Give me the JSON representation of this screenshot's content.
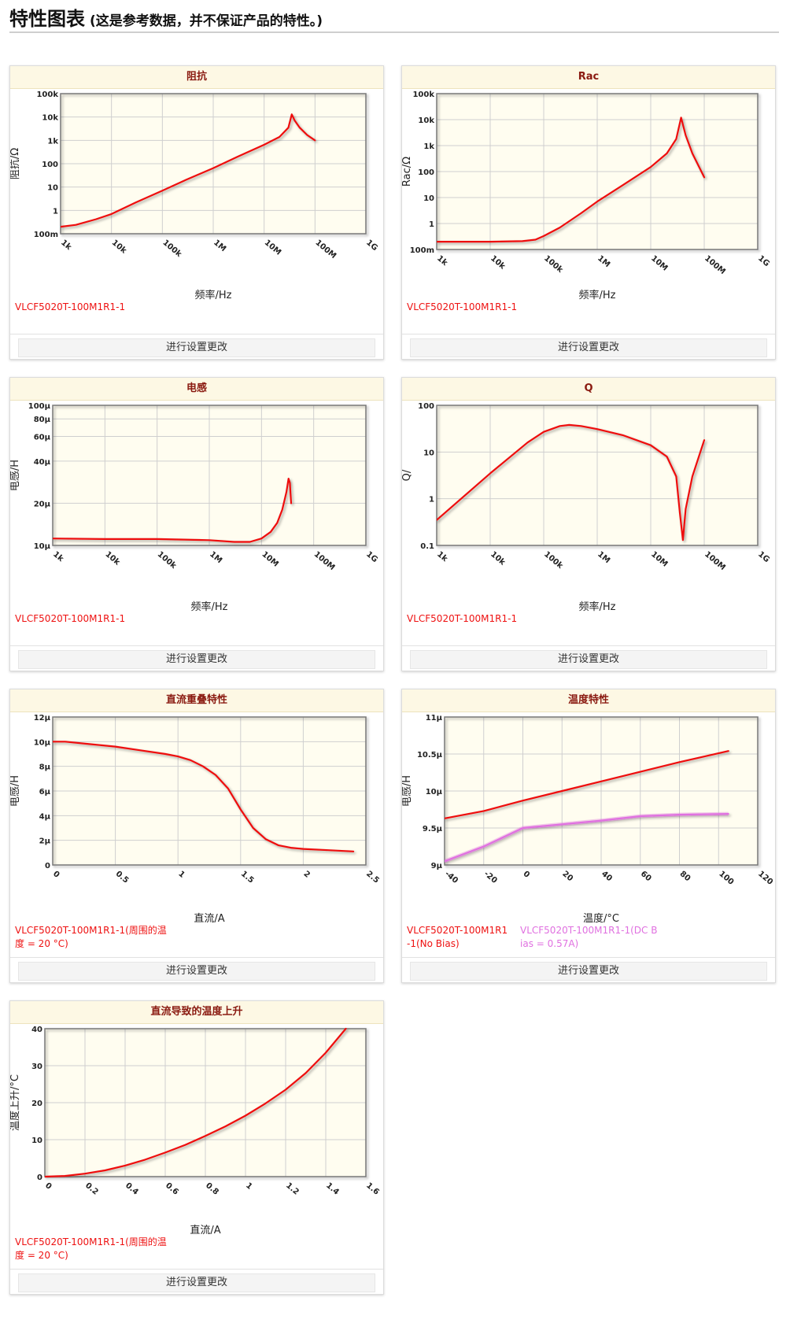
{
  "page": {
    "title": "特性图表",
    "subtitle": "(这是参考数据，并不保证产品的特性。)"
  },
  "button_label": "进行设置更改",
  "charts": [
    {
      "id": "impedance",
      "title": "阻抗",
      "xlabel": "频率/Hz",
      "ylabel": "阻抗/Ω",
      "x_scale": "log",
      "y_scale": "log",
      "xlim": [
        1000,
        1000000000
      ],
      "ylim": [
        0.1,
        100000
      ],
      "x_ticks": [
        1000,
        10000,
        100000,
        1000000,
        10000000,
        100000000,
        1000000000
      ],
      "x_tick_labels": [
        "1k",
        "10k",
        "100k",
        "1M",
        "10M",
        "100M",
        "1G"
      ],
      "y_ticks": [
        0.1,
        1,
        10,
        100,
        1000,
        10000,
        100000
      ],
      "y_tick_labels": [
        "100m",
        "1",
        "10",
        "100",
        "1k",
        "10k",
        "100k"
      ],
      "grid": true,
      "series": [
        {
          "legend": "VLCF5020T-100M1R1-1",
          "color": "#ee1111",
          "glow": false,
          "x": [
            1000,
            2000,
            5000,
            10000,
            30000,
            100000,
            300000,
            1000000,
            3000000,
            10000000,
            20000000,
            30000000,
            35000000,
            40000000,
            50000000,
            70000000,
            100000000
          ],
          "y": [
            0.2,
            0.24,
            0.42,
            0.7,
            2.2,
            7,
            21,
            65,
            200,
            650,
            1400,
            3500,
            13000,
            7000,
            3500,
            1700,
            1000
          ]
        }
      ]
    },
    {
      "id": "rac",
      "title": "Rac",
      "xlabel": "频率/Hz",
      "ylabel": "Rac/Ω",
      "x_scale": "log",
      "y_scale": "log",
      "xlim": [
        1000,
        1000000000
      ],
      "ylim": [
        0.1,
        100000
      ],
      "x_ticks": [
        1000,
        10000,
        100000,
        1000000,
        10000000,
        100000000,
        1000000000
      ],
      "x_tick_labels": [
        "1k",
        "10k",
        "100k",
        "1M",
        "10M",
        "100M",
        "1G"
      ],
      "y_ticks": [
        0.1,
        1,
        10,
        100,
        1000,
        10000,
        100000
      ],
      "y_tick_labels": [
        "100m",
        "1",
        "10",
        "100",
        "1k",
        "10k",
        "100k"
      ],
      "grid": true,
      "series": [
        {
          "legend": "VLCF5020T-100M1R1-1",
          "color": "#ee1111",
          "glow": false,
          "x": [
            1000,
            10000,
            40000,
            70000,
            100000,
            200000,
            500000,
            1000000,
            3000000,
            10000000,
            20000000,
            30000000,
            37000000,
            45000000,
            60000000,
            100000000
          ],
          "y": [
            0.2,
            0.2,
            0.21,
            0.24,
            0.33,
            0.7,
            2.5,
            7,
            30,
            150,
            500,
            1800,
            12000,
            2500,
            500,
            60
          ]
        }
      ]
    },
    {
      "id": "inductance",
      "title": "电感",
      "xlabel": "频率/Hz",
      "ylabel": "电感/H",
      "x_scale": "log",
      "y_scale": "log",
      "xlim": [
        1000,
        1000000000
      ],
      "ylim": [
        1e-05,
        0.0001
      ],
      "x_ticks": [
        1000,
        10000,
        100000,
        1000000,
        10000000,
        100000000,
        1000000000
      ],
      "x_tick_labels": [
        "1k",
        "10k",
        "100k",
        "1M",
        "10M",
        "100M",
        "1G"
      ],
      "y_ticks": [
        1e-05,
        2e-05,
        4e-05,
        6e-05,
        8e-05,
        0.0001
      ],
      "y_tick_labels": [
        "10μ",
        "20μ",
        "40μ",
        "60μ",
        "80μ",
        "100μ"
      ],
      "grid": true,
      "series": [
        {
          "legend": "VLCF5020T-100M1R1-1",
          "color": "#ee1111",
          "glow": false,
          "x": [
            1000,
            10000,
            100000,
            1000000,
            3000000,
            6000000,
            10000000,
            15000000,
            20000000,
            25000000,
            30000000,
            33000000,
            35000000,
            37000000
          ],
          "y": [
            1.12e-05,
            1.11e-05,
            1.11e-05,
            1.09e-05,
            1.06e-05,
            1.06e-05,
            1.12e-05,
            1.25e-05,
            1.45e-05,
            1.8e-05,
            2.4e-05,
            3e-05,
            2.8e-05,
            2e-05
          ]
        }
      ]
    },
    {
      "id": "q",
      "title": "Q",
      "xlabel": "频率/Hz",
      "ylabel": "Q/",
      "x_scale": "log",
      "y_scale": "log",
      "xlim": [
        1000,
        1000000000
      ],
      "ylim": [
        0.1,
        100
      ],
      "x_ticks": [
        1000,
        10000,
        100000,
        1000000,
        10000000,
        100000000,
        1000000000
      ],
      "x_tick_labels": [
        "1k",
        "10k",
        "100k",
        "1M",
        "10M",
        "100M",
        "1G"
      ],
      "y_ticks": [
        0.1,
        1,
        10,
        100
      ],
      "y_tick_labels": [
        "0.1",
        "1",
        "10",
        "100"
      ],
      "grid": true,
      "series": [
        {
          "legend": "VLCF5020T-100M1R1-1",
          "color": "#ee1111",
          "glow": false,
          "x": [
            1000,
            10000,
            50000,
            100000,
            200000,
            300000,
            500000,
            1000000,
            3000000,
            10000000,
            20000000,
            30000000,
            35000000,
            40000000,
            45000000,
            60000000,
            100000000
          ],
          "y": [
            0.35,
            3.5,
            16,
            27,
            36,
            38,
            36,
            31,
            23,
            14,
            8,
            3,
            0.5,
            0.13,
            0.6,
            3,
            18
          ]
        }
      ]
    },
    {
      "id": "dc-superposition",
      "title": "直流重叠特性",
      "xlabel": "直流/A",
      "ylabel": "电感/H",
      "x_scale": "linear",
      "y_scale": "linear",
      "xlim": [
        0,
        2.5
      ],
      "ylim": [
        0,
        1.2e-05
      ],
      "x_ticks": [
        0,
        0.5,
        1,
        1.5,
        2,
        2.5
      ],
      "x_tick_labels": [
        "0",
        "0.5",
        "1",
        "1.5",
        "2",
        "2.5"
      ],
      "y_ticks": [
        0,
        2e-06,
        4e-06,
        6e-06,
        8e-06,
        1e-05,
        1.2e-05
      ],
      "y_tick_labels": [
        "0",
        "2μ",
        "4μ",
        "6μ",
        "8μ",
        "10μ",
        "12μ"
      ],
      "grid": true,
      "series": [
        {
          "legend": "VLCF5020T-100M1R1-1(周围的温度 = 20 °C)",
          "color": "#ee1111",
          "glow": false,
          "x": [
            0,
            0.1,
            0.3,
            0.5,
            0.7,
            0.9,
            1.0,
            1.1,
            1.2,
            1.3,
            1.4,
            1.5,
            1.6,
            1.7,
            1.8,
            1.9,
            2.0,
            2.2,
            2.4
          ],
          "y": [
            1e-05,
            1e-05,
            9.8e-06,
            9.6e-06,
            9.3e-06,
            9e-06,
            8.8e-06,
            8.5e-06,
            8e-06,
            7.3e-06,
            6.2e-06,
            4.5e-06,
            3e-06,
            2.1e-06,
            1.6e-06,
            1.4e-06,
            1.3e-06,
            1.2e-06,
            1.1e-06
          ]
        }
      ]
    },
    {
      "id": "temperature",
      "title": "温度特性",
      "xlabel": "温度/°C",
      "ylabel": "电感/H",
      "x_scale": "linear",
      "y_scale": "linear",
      "xlim": [
        -40,
        120
      ],
      "ylim": [
        9e-06,
        1.1e-05
      ],
      "x_ticks": [
        -40,
        -20,
        0,
        20,
        40,
        60,
        80,
        100,
        120
      ],
      "x_tick_labels": [
        "-40",
        "-20",
        "0",
        "20",
        "40",
        "60",
        "80",
        "100",
        "120"
      ],
      "y_ticks": [
        9e-06,
        9.5e-06,
        1e-05,
        1.05e-05,
        1.1e-05
      ],
      "y_tick_labels": [
        "9μ",
        "9.5μ",
        "10μ",
        "10.5μ",
        "11μ"
      ],
      "grid": true,
      "series": [
        {
          "legend": "VLCF5020T-100M1R1-1(No Bias)",
          "color": "#ee1111",
          "glow": false,
          "x": [
            -40,
            -20,
            0,
            20,
            40,
            60,
            80,
            105
          ],
          "y": [
            9.63e-06,
            9.73e-06,
            9.87e-06,
            1e-05,
            1.013e-05,
            1.026e-05,
            1.039e-05,
            1.054e-05
          ]
        },
        {
          "legend": "VLCF5020T-100M1R1-1(DC Bias = 0.57A)",
          "color": "#e070e0",
          "glow": true,
          "x": [
            -40,
            -20,
            0,
            20,
            40,
            60,
            80,
            105
          ],
          "y": [
            9.05e-06,
            9.25e-06,
            9.5e-06,
            9.55e-06,
            9.6e-06,
            9.66e-06,
            9.68e-06,
            9.69e-06
          ]
        }
      ]
    },
    {
      "id": "temperature-rise",
      "title": "直流导致的温度上升",
      "xlabel": "直流/A",
      "ylabel": "温度上升/°C",
      "x_scale": "linear",
      "y_scale": "linear",
      "xlim": [
        0,
        1.6
      ],
      "ylim": [
        0,
        40
      ],
      "x_ticks": [
        0,
        0.2,
        0.4,
        0.6,
        0.8,
        1,
        1.2,
        1.4,
        1.6
      ],
      "x_tick_labels": [
        "0",
        "0.2",
        "0.4",
        "0.6",
        "0.8",
        "1",
        "1.2",
        "1.4",
        "1.6"
      ],
      "y_ticks": [
        0,
        10,
        20,
        30,
        40
      ],
      "y_tick_labels": [
        "0",
        "10",
        "20",
        "30",
        "40"
      ],
      "grid": true,
      "series": [
        {
          "legend": "VLCF5020T-100M1R1-1(周围的温度 = 20 °C)",
          "color": "#ee1111",
          "glow": false,
          "x": [
            0,
            0.1,
            0.2,
            0.3,
            0.4,
            0.5,
            0.6,
            0.7,
            0.8,
            0.9,
            1.0,
            1.1,
            1.2,
            1.3,
            1.4,
            1.5
          ],
          "y": [
            0,
            0.2,
            0.8,
            1.7,
            3,
            4.6,
            6.5,
            8.6,
            11,
            13.6,
            16.5,
            19.8,
            23.5,
            28,
            33.5,
            40
          ]
        }
      ]
    }
  ]
}
